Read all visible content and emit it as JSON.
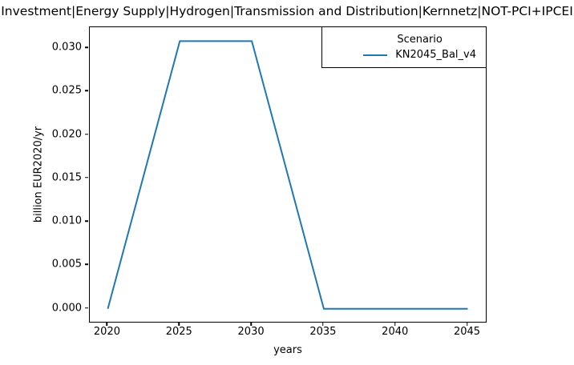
{
  "chart_data": {
    "type": "line",
    "title": "Investment|Energy Supply|Hydrogen|Transmission and Distribution|Kernnetz|NOT-PCI+IPCEI",
    "xlabel": "years",
    "ylabel": "billion EUR2020/yr",
    "x": [
      2020,
      2025,
      2030,
      2035,
      2040,
      2045
    ],
    "series": [
      {
        "name": "KN2045_Bal_v4",
        "color": "#1f77b4",
        "values": [
          0.0,
          0.0308,
          0.0308,
          0.0,
          0.0,
          0.0
        ]
      }
    ],
    "xlim": [
      2018.75,
      2046.25
    ],
    "ylim": [
      -0.0015,
      0.0324
    ],
    "xticks": [
      2020,
      2025,
      2030,
      2035,
      2040,
      2045
    ],
    "yticks": [
      0.0,
      0.005,
      0.01,
      0.015,
      0.02,
      0.025,
      0.03
    ],
    "ytick_decimals": 3,
    "grid": false,
    "legend": {
      "title": "Scenario",
      "position": "upper right"
    }
  }
}
